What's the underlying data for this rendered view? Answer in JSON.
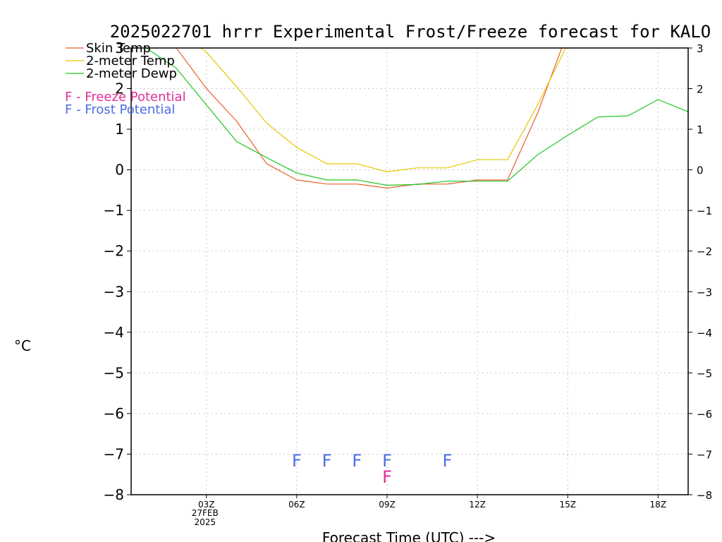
{
  "chart_data": {
    "type": "line",
    "title": "2025022701 hrrr Experimental Frost/Freeze forecast for KALO",
    "xlabel": "Forecast Time (UTC) --->",
    "ylabel": "°C",
    "ylim": [
      -8,
      3
    ],
    "xlim_hours": [
      1,
      19
    ],
    "y_ticks": [
      3,
      2,
      1,
      0,
      -1,
      -2,
      -3,
      -4,
      -5,
      -6,
      -7,
      -8
    ],
    "y_tick_labels": [
      "3",
      "2",
      "1",
      "0",
      "−1",
      "−2",
      "−3",
      "−4",
      "−5",
      "−6",
      "−7",
      "−8"
    ],
    "x_ticks": [
      {
        "hour": 3,
        "label": "03Z",
        "sub1": "27FEB",
        "sub2": "2025"
      },
      {
        "hour": 6,
        "label": "06Z"
      },
      {
        "hour": 9,
        "label": "09Z"
      },
      {
        "hour": 12,
        "label": "12Z"
      },
      {
        "hour": 15,
        "label": "15Z"
      },
      {
        "hour": 18,
        "label": "18Z"
      }
    ],
    "grid": true,
    "series": [
      {
        "name": "Skin Temp",
        "color": "#e8602c",
        "x": [
          1,
          2,
          3,
          4,
          5,
          6,
          7,
          8,
          9,
          10,
          11,
          12,
          13,
          14,
          15
        ],
        "values": [
          3.2,
          3.0,
          2.0,
          1.2,
          0.15,
          -0.25,
          -0.35,
          -0.35,
          -0.45,
          -0.35,
          -0.35,
          -0.25,
          -0.25,
          1.4,
          3.4
        ]
      },
      {
        "name": "2-meter Temp",
        "color": "#e6c800",
        "x": [
          1,
          2,
          3,
          4,
          5,
          6,
          7,
          8,
          9,
          10,
          11,
          12,
          13,
          14,
          15
        ],
        "values": [
          3.6,
          3.4,
          2.9,
          2.05,
          1.15,
          0.55,
          0.15,
          0.15,
          -0.05,
          0.05,
          0.05,
          0.25,
          0.25,
          1.6,
          3.1
        ]
      },
      {
        "name": "2-meter Dewp",
        "color": "#1fc41f",
        "x": [
          1,
          2,
          3,
          4,
          5,
          6,
          7,
          8,
          9,
          10,
          11,
          12,
          13,
          14,
          15,
          16,
          17,
          18,
          19
        ],
        "values": [
          3.0,
          2.5,
          1.6,
          0.7,
          0.3,
          -0.08,
          -0.25,
          -0.25,
          -0.38,
          -0.36,
          -0.28,
          -0.28,
          -0.28,
          0.37,
          0.85,
          1.3,
          1.33,
          1.73,
          1.43
        ]
      }
    ],
    "annotations": [
      {
        "type": "Frost Potential",
        "symbol": "F",
        "color": "#4a6ee0",
        "hours": [
          6,
          7,
          8,
          9,
          11
        ],
        "y": -7.15
      },
      {
        "type": "Freeze Potential",
        "symbol": "F",
        "color": "#e0309a",
        "hours": [
          9
        ],
        "y": -7.55
      }
    ],
    "legend": [
      {
        "label": "Skin Temp",
        "color": "#e8602c",
        "kind": "line"
      },
      {
        "label": "2-meter Temp",
        "color": "#e6c800",
        "kind": "line"
      },
      {
        "label": "2-meter Dewp",
        "color": "#1fc41f",
        "kind": "line"
      },
      {
        "label": "F - Freeze Potential",
        "color": "#e0309a",
        "kind": "text"
      },
      {
        "label": "F - Frost Potential",
        "color": "#4a6ee0",
        "kind": "text"
      }
    ],
    "legend_placement": "top-left"
  }
}
